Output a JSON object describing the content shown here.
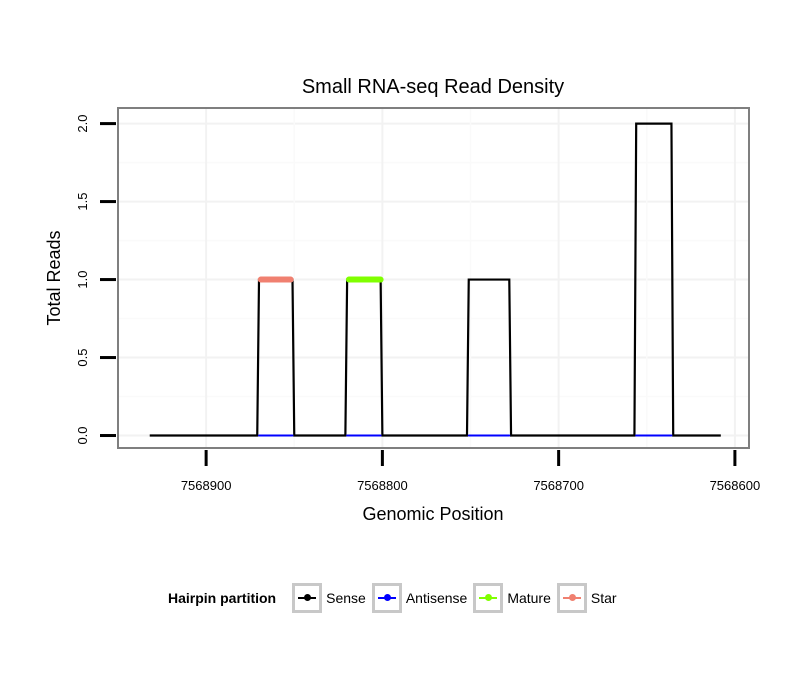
{
  "chart_data": {
    "type": "line",
    "title": "Small RNA-seq Read Density",
    "xlabel": "Genomic Position",
    "ylabel": "Total Reads",
    "x_reversed": true,
    "xlim": [
      7568950,
      7568592
    ],
    "ylim": [
      -0.08,
      2.1
    ],
    "xticks": [
      7568900,
      7568800,
      7568700,
      7568600
    ],
    "xtick_labels": [
      "7568900",
      "7568800",
      "7568700",
      "7568600"
    ],
    "yticks": [
      0,
      0.5,
      1,
      1.5,
      2
    ],
    "ytick_labels": [
      "0.0",
      "0.5",
      "1.0",
      "1.5",
      "2.0"
    ],
    "series": [
      {
        "name": "Sense",
        "color": "#000000",
        "x": [
          7568932,
          7568871,
          7568870,
          7568851,
          7568850,
          7568821,
          7568820,
          7568801,
          7568800,
          7568752,
          7568751,
          7568728,
          7568727,
          7568657,
          7568656,
          7568636,
          7568635,
          7568608
        ],
        "y": [
          0,
          0,
          1,
          1,
          0,
          0,
          1,
          1,
          0,
          0,
          1,
          1,
          0,
          0,
          2,
          2,
          0,
          0
        ]
      },
      {
        "name": "Antisense",
        "color": "#0000ff",
        "segments": [
          {
            "x": [
              7568870,
              7568851
            ],
            "y": [
              0,
              0
            ]
          },
          {
            "x": [
              7568820,
              7568801
            ],
            "y": [
              0,
              0
            ]
          },
          {
            "x": [
              7568751,
              7568728
            ],
            "y": [
              0,
              0
            ]
          },
          {
            "x": [
              7568656,
              7568636
            ],
            "y": [
              0,
              0
            ]
          }
        ]
      },
      {
        "name": "Mature",
        "color": "#80ff00",
        "segments": [
          {
            "x": [
              7568819,
              7568801
            ],
            "y": [
              1,
              1
            ]
          }
        ]
      },
      {
        "name": "Star",
        "color": "#f08070",
        "segments": [
          {
            "x": [
              7568869,
              7568852
            ],
            "y": [
              1,
              1
            ]
          }
        ]
      }
    ],
    "legend": {
      "title": "Hairpin partition",
      "position": "bottom",
      "entries": [
        {
          "label": "Sense",
          "color": "#000000"
        },
        {
          "label": "Antisense",
          "color": "#0000ff"
        },
        {
          "label": "Mature",
          "color": "#80ff00"
        },
        {
          "label": "Star",
          "color": "#f08070"
        }
      ]
    }
  }
}
